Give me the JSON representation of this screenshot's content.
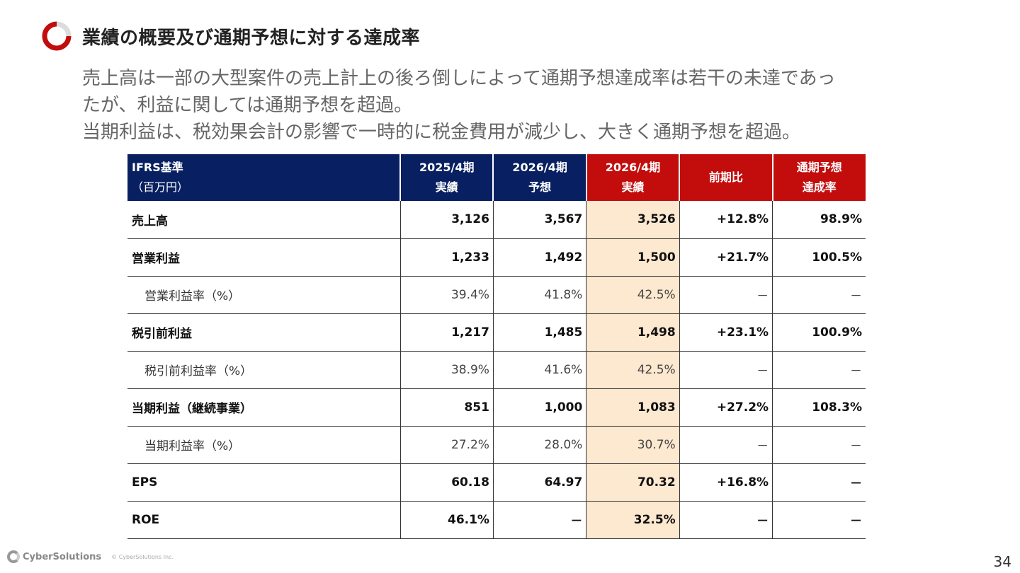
{
  "title": "業績の概要及び通期予想に対する達成率",
  "lead": [
    "売上高は一部の大型案件の売上計上の後ろ倒しによって通期予想達成率は若干の未達であっ",
    "たが、利益に関しては通期予想を超過。",
    "当期利益は、税効果会計の影響で一時的に税金費用が減少し、大きく通期予想を超過。"
  ],
  "colors": {
    "navy": "#082061",
    "red": "#c30d0d",
    "highlight": "#fde8d0",
    "ring": "#c30d0d"
  },
  "table": {
    "header": {
      "basis": "IFRS基準",
      "unit": "（百万円）",
      "c1": [
        "2025/4期",
        "実績"
      ],
      "c2": [
        "2026/4期",
        "予想"
      ],
      "c3": [
        "2026/4期",
        "実績"
      ],
      "c4": [
        "前期比"
      ],
      "c5": [
        "通期予想",
        "達成率"
      ]
    },
    "rows": [
      {
        "label": "売上高",
        "values": [
          "3,126",
          "3,567",
          "3,526",
          "+12.8%",
          "98.9%"
        ],
        "style": "bold"
      },
      {
        "label": "営業利益",
        "values": [
          "1,233",
          "1,492",
          "1,500",
          "+21.7%",
          "100.5%"
        ],
        "style": "bold"
      },
      {
        "label": "営業利益率（%）",
        "values": [
          "39.4%",
          "41.8%",
          "42.5%",
          "－",
          "－"
        ],
        "style": "light"
      },
      {
        "label": "税引前利益",
        "values": [
          "1,217",
          "1,485",
          "1,498",
          "+23.1%",
          "100.9%"
        ],
        "style": "bold"
      },
      {
        "label": "税引前利益率（%）",
        "values": [
          "38.9%",
          "41.6%",
          "42.5%",
          "－",
          "－"
        ],
        "style": "light"
      },
      {
        "label": "当期利益（継続事業）",
        "values": [
          "851",
          "1,000",
          "1,083",
          "+27.2%",
          "108.3%"
        ],
        "style": "bold"
      },
      {
        "label": "当期利益率（%）",
        "values": [
          "27.2%",
          "28.0%",
          "30.7%",
          "－",
          "－"
        ],
        "style": "light"
      },
      {
        "label": "EPS",
        "values": [
          "60.18",
          "64.97",
          "70.32",
          "+16.8%",
          "－"
        ],
        "style": "bold"
      },
      {
        "label": "ROE",
        "values": [
          "46.1%",
          "－",
          "32.5%",
          "－",
          "－"
        ],
        "style": "bold"
      }
    ]
  },
  "footer": {
    "brand": "CyberSolutions",
    "copyright": "© CyberSolutions Inc.",
    "page": "34"
  }
}
